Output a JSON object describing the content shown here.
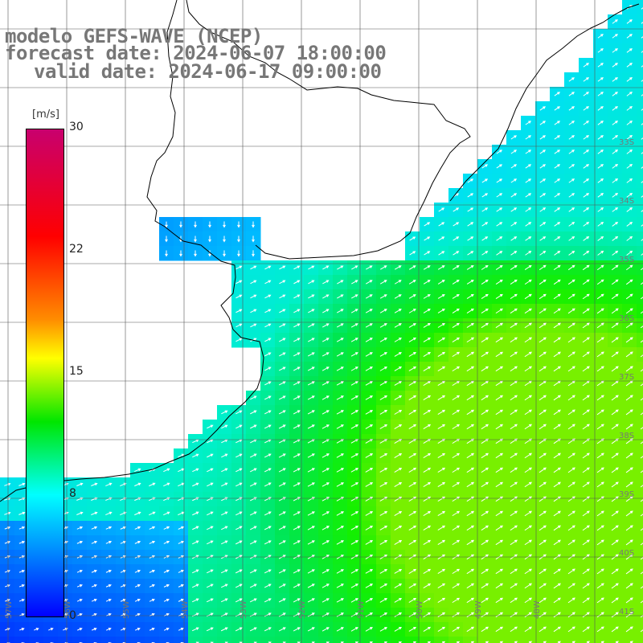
{
  "title": {
    "line1": "modelo GEFS-WAVE (NCEP)",
    "line2": "forecast date: 2024-06-07 18:00:00",
    "line3": "valid date: 2024-06-17 09:00:00"
  },
  "colorbar": {
    "unit": "[m/s]",
    "ticks": [
      "30",
      "22",
      "15",
      "8",
      "0"
    ],
    "range": [
      0,
      30
    ],
    "colors": [
      "#0000ff",
      "#0090ff",
      "#00ffff",
      "#00e600",
      "#ffff00",
      "#ff8c00",
      "#ff0000",
      "#c8006e"
    ]
  },
  "map": {
    "lat_labels": [
      "33S",
      "34S",
      "35S",
      "36S",
      "37S",
      "38S",
      "39S",
      "40S",
      "41S"
    ],
    "lon_labels": [
      "57W",
      "56W",
      "55W",
      "54W",
      "53W",
      "52W",
      "51W",
      "50W",
      "49W",
      "48W"
    ],
    "wind_direction": "NE",
    "water_color": "#3cc8ff",
    "land_color": "#ffffff"
  }
}
